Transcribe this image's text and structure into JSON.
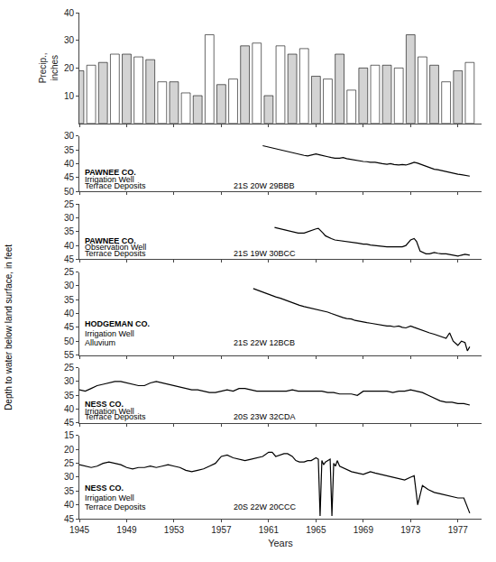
{
  "ylabel": "Depth to water below land surface, in feet",
  "chart_data": [
    {
      "type": "bar",
      "x": [
        1945,
        1946,
        1947,
        1948,
        1949,
        1950,
        1951,
        1952,
        1953,
        1954,
        1955,
        1956,
        1957,
        1958,
        1959,
        1960,
        1961,
        1962,
        1963,
        1964,
        1965,
        1966,
        1967,
        1968,
        1969,
        1970,
        1971,
        1972,
        1973,
        1974,
        1975,
        1976,
        1977,
        1978
      ],
      "values": [
        19,
        21,
        22,
        25,
        25,
        24,
        23,
        15,
        15,
        11,
        10,
        32,
        14,
        16,
        28,
        29,
        10,
        28,
        25,
        27,
        17,
        16,
        25,
        12,
        20,
        21,
        21,
        20,
        32,
        24,
        21,
        15,
        19,
        22
      ],
      "colors": [
        "lightgray",
        "white",
        "lightgray",
        "white",
        "lightgray",
        "white",
        "lightgray",
        "white",
        "lightgray",
        "white",
        "lightgray",
        "white",
        "lightgray",
        "white",
        "lightgray",
        "white",
        "lightgray",
        "white",
        "lightgray",
        "white",
        "lightgray",
        "white",
        "lightgray",
        "white",
        "lightgray",
        "white",
        "lightgray",
        "white",
        "lightgray",
        "white",
        "lightgray",
        "white",
        "lightgray",
        "white"
      ],
      "xlim": [
        1945,
        1979
      ],
      "xticks": [
        1945,
        1949,
        1953,
        1957,
        1961,
        1965,
        1969,
        1973,
        1977
      ],
      "ylim": [
        0,
        40
      ],
      "yticks": [
        10,
        20,
        30,
        40
      ],
      "ylabel": "Precip.,\ninches",
      "grid": false,
      "tick_labels": "y"
    },
    {
      "type": "line",
      "color": "black",
      "x": [
        1960.5,
        1961.0,
        1961.3,
        1961.6,
        1962.0,
        1962.3,
        1962.6,
        1963.0,
        1963.3,
        1963.6,
        1964.0,
        1964.3,
        1964.6,
        1965.0,
        1965.3,
        1965.6,
        1966.0,
        1966.3,
        1966.6,
        1967.0,
        1967.3,
        1967.6,
        1968.0,
        1968.3,
        1968.6,
        1969.0,
        1969.3,
        1969.6,
        1970.0,
        1970.3,
        1970.6,
        1971.0,
        1971.3,
        1971.6,
        1972.0,
        1972.3,
        1972.6,
        1973.0,
        1973.3,
        1973.6,
        1974.0,
        1974.3,
        1974.6,
        1975.0,
        1975.3,
        1975.6,
        1976.0,
        1976.3,
        1976.6,
        1977.0,
        1977.3,
        1977.6,
        1978.0
      ],
      "values": [
        33.5,
        34.0,
        34.5,
        34.8,
        35.0,
        35.3,
        35.7,
        36.0,
        36.3,
        36.6,
        37.0,
        37.2,
        37.0,
        36.5,
        36.8,
        37.2,
        37.5,
        37.8,
        38.0,
        38.0,
        37.8,
        38.2,
        38.5,
        38.8,
        39.0,
        39.2,
        39.3,
        39.5,
        39.5,
        39.8,
        40.0,
        40.2,
        40.0,
        40.3,
        40.5,
        40.3,
        40.5,
        40.0,
        39.5,
        39.8,
        40.5,
        41.0,
        41.5,
        42.0,
        42.2,
        42.5,
        43.0,
        43.3,
        43.5,
        43.8,
        44.0,
        44.2,
        44.5
      ],
      "xlim": [
        1945,
        1979
      ],
      "xticks": [
        1945,
        1949,
        1953,
        1957,
        1961,
        1965,
        1969,
        1973,
        1977
      ],
      "ylim": [
        50,
        30
      ],
      "yticks": [
        30,
        35,
        40,
        45,
        50
      ],
      "annotations": [
        "PAWNEE CO.",
        "Irrigation Well",
        "Terrace Deposits",
        "21S 20W 29BBB"
      ],
      "grid": false,
      "tick_labels": "y"
    },
    {
      "type": "line",
      "color": "black",
      "x": [
        1961.5,
        1962.0,
        1962.5,
        1963.0,
        1963.5,
        1964.0,
        1964.3,
        1964.6,
        1965.0,
        1965.2,
        1965.4,
        1965.6,
        1965.8,
        1966.0,
        1966.3,
        1966.6,
        1967.0,
        1967.3,
        1967.6,
        1968.0,
        1968.3,
        1968.6,
        1969.0,
        1969.3,
        1969.6,
        1970.0,
        1970.3,
        1970.6,
        1971.0,
        1971.3,
        1971.6,
        1972.0,
        1972.3,
        1972.6,
        1973.0,
        1973.3,
        1973.5,
        1973.8,
        1974.0,
        1974.3,
        1974.6,
        1975.0,
        1975.3,
        1975.6,
        1976.0,
        1976.3,
        1976.6,
        1977.0,
        1977.3,
        1977.6,
        1978.0
      ],
      "values": [
        33.5,
        34.0,
        34.5,
        35.0,
        35.5,
        35.5,
        35.0,
        34.5,
        34.0,
        33.8,
        34.5,
        35.5,
        36.5,
        37.0,
        37.5,
        38.0,
        38.2,
        38.5,
        38.5,
        38.8,
        39.0,
        39.2,
        39.5,
        39.5,
        39.8,
        40.0,
        40.2,
        40.5,
        40.5,
        40.5,
        40.5,
        40.5,
        40.5,
        40.0,
        38.0,
        37.5,
        38.5,
        42.0,
        42.5,
        43.0,
        43.0,
        42.5,
        42.8,
        43.0,
        43.0,
        43.2,
        43.5,
        43.8,
        43.5,
        43.2,
        43.5
      ],
      "xlim": [
        1945,
        1979
      ],
      "xticks": [
        1945,
        1949,
        1953,
        1957,
        1961,
        1965,
        1969,
        1973,
        1977
      ],
      "ylim": [
        45,
        25
      ],
      "yticks": [
        25,
        30,
        35,
        40,
        45
      ],
      "annotations": [
        "PAWNEE CO.",
        "Observation Well",
        "Terrace Deposits",
        "21S 19W 30BCC"
      ],
      "grid": false,
      "tick_labels": "y"
    },
    {
      "type": "line",
      "color": "black",
      "x": [
        1959.7,
        1960.0,
        1960.3,
        1960.6,
        1961.0,
        1961.3,
        1961.6,
        1962.0,
        1962.3,
        1962.6,
        1963.0,
        1963.3,
        1963.6,
        1964.0,
        1964.3,
        1964.6,
        1965.0,
        1965.3,
        1965.6,
        1966.0,
        1966.3,
        1966.6,
        1967.0,
        1967.3,
        1967.6,
        1968.0,
        1968.3,
        1968.6,
        1969.0,
        1969.3,
        1969.6,
        1970.0,
        1970.3,
        1970.6,
        1971.0,
        1971.3,
        1971.6,
        1972.0,
        1972.3,
        1972.6,
        1973.0,
        1973.3,
        1973.6,
        1974.0,
        1974.3,
        1974.6,
        1975.0,
        1975.3,
        1975.6,
        1976.0,
        1976.3,
        1976.6,
        1977.0,
        1977.3,
        1977.6,
        1977.8,
        1978.0
      ],
      "values": [
        31.0,
        31.5,
        32.0,
        32.5,
        33.0,
        33.5,
        34.0,
        34.5,
        35.0,
        35.5,
        36.0,
        36.5,
        37.0,
        37.5,
        37.8,
        38.0,
        38.5,
        38.8,
        39.0,
        39.5,
        40.0,
        40.5,
        41.0,
        41.5,
        41.8,
        42.0,
        42.5,
        42.8,
        43.0,
        43.3,
        43.5,
        43.8,
        44.0,
        44.2,
        44.5,
        44.5,
        44.8,
        44.5,
        45.0,
        45.2,
        44.5,
        45.0,
        45.5,
        46.0,
        46.5,
        47.0,
        47.5,
        48.0,
        48.5,
        49.0,
        47.0,
        50.0,
        51.5,
        50.0,
        50.5,
        53.5,
        52.0
      ],
      "xlim": [
        1945,
        1979
      ],
      "xticks": [
        1945,
        1949,
        1953,
        1957,
        1961,
        1965,
        1969,
        1973,
        1977
      ],
      "ylim": [
        55,
        25
      ],
      "yticks": [
        25,
        30,
        35,
        40,
        45,
        50,
        55
      ],
      "annotations": [
        "HODGEMAN CO.",
        "Irrigation Well",
        "Alluvium",
        "21S 22W 12BCB"
      ],
      "grid": false,
      "tick_labels": "y"
    },
    {
      "type": "line",
      "color": "black",
      "x": [
        1945.0,
        1945.5,
        1946.0,
        1946.5,
        1947.0,
        1947.5,
        1948.0,
        1948.5,
        1949.0,
        1949.5,
        1950.0,
        1950.5,
        1951.0,
        1951.5,
        1952.0,
        1952.5,
        1953.0,
        1953.5,
        1954.0,
        1954.5,
        1955.0,
        1955.5,
        1956.0,
        1956.5,
        1957.0,
        1957.5,
        1958.0,
        1958.5,
        1959.0,
        1959.5,
        1960.0,
        1960.5,
        1961.0,
        1961.5,
        1962.0,
        1962.5,
        1963.0,
        1963.5,
        1964.0,
        1964.5,
        1965.0,
        1965.5,
        1966.0,
        1966.5,
        1967.0,
        1967.5,
        1968.0,
        1968.5,
        1969.0,
        1969.5,
        1970.0,
        1970.5,
        1971.0,
        1971.5,
        1972.0,
        1972.5,
        1973.0,
        1973.5,
        1974.0,
        1974.5,
        1975.0,
        1975.5,
        1976.0,
        1976.5,
        1977.0,
        1977.5,
        1978.0
      ],
      "values": [
        33.0,
        33.5,
        32.5,
        31.5,
        31.0,
        30.5,
        30.0,
        30.0,
        30.5,
        31.0,
        31.5,
        31.5,
        30.5,
        30.0,
        30.5,
        31.0,
        31.5,
        32.0,
        32.5,
        33.0,
        33.0,
        33.5,
        34.0,
        34.0,
        33.5,
        33.0,
        33.5,
        32.5,
        32.5,
        33.0,
        33.5,
        33.5,
        33.5,
        33.5,
        33.5,
        33.5,
        33.0,
        33.5,
        33.5,
        33.5,
        33.5,
        33.5,
        34.0,
        34.0,
        34.5,
        34.5,
        34.5,
        35.0,
        33.5,
        33.5,
        33.5,
        33.5,
        33.5,
        34.0,
        33.5,
        33.5,
        33.0,
        33.5,
        34.0,
        35.0,
        36.0,
        37.0,
        37.5,
        37.5,
        38.0,
        38.0,
        38.5
      ],
      "xlim": [
        1945,
        1979
      ],
      "xticks": [
        1945,
        1949,
        1953,
        1957,
        1961,
        1965,
        1969,
        1973,
        1977
      ],
      "ylim": [
        45,
        25
      ],
      "yticks": [
        25,
        30,
        35,
        40,
        45
      ],
      "annotations": [
        "NESS CO.",
        "Irrigation Well",
        "Terrace Deposits",
        "20S 23W 32CDA"
      ],
      "grid": false,
      "tick_labels": "y"
    },
    {
      "type": "line",
      "color": "black",
      "x": [
        1945.0,
        1945.5,
        1946.0,
        1946.5,
        1947.0,
        1947.5,
        1948.0,
        1948.5,
        1949.0,
        1949.5,
        1950.0,
        1950.5,
        1951.0,
        1951.5,
        1952.0,
        1952.5,
        1953.0,
        1953.5,
        1954.0,
        1954.5,
        1955.0,
        1955.5,
        1956.0,
        1956.5,
        1957.0,
        1957.5,
        1958.0,
        1958.5,
        1959.0,
        1959.5,
        1960.0,
        1960.5,
        1961.0,
        1961.3,
        1961.6,
        1962.0,
        1962.3,
        1962.6,
        1963.0,
        1963.3,
        1963.6,
        1964.0,
        1964.3,
        1964.6,
        1965.0,
        1965.2,
        1965.35,
        1965.5,
        1965.65,
        1965.8,
        1966.0,
        1966.2,
        1966.35,
        1966.5,
        1966.65,
        1966.8,
        1967.0,
        1967.5,
        1968.0,
        1968.5,
        1969.0,
        1969.3,
        1969.6,
        1970.0,
        1970.5,
        1971.0,
        1971.5,
        1972.0,
        1972.5,
        1973.0,
        1973.3,
        1973.6,
        1974.0,
        1974.5,
        1975.0,
        1975.5,
        1976.0,
        1976.5,
        1977.0,
        1977.5,
        1978.0
      ],
      "values": [
        25.5,
        26.0,
        26.5,
        26.0,
        25.0,
        24.5,
        25.0,
        25.5,
        26.5,
        27.0,
        26.5,
        26.5,
        26.0,
        26.5,
        26.0,
        25.5,
        26.0,
        26.5,
        27.5,
        28.0,
        27.5,
        27.0,
        26.0,
        25.0,
        22.5,
        22.0,
        23.0,
        23.5,
        24.0,
        23.5,
        23.0,
        22.5,
        21.0,
        21.0,
        22.5,
        22.0,
        21.5,
        21.5,
        22.5,
        24.0,
        24.5,
        24.5,
        24.0,
        24.0,
        23.0,
        23.5,
        44.0,
        24.0,
        25.5,
        24.5,
        24.0,
        23.5,
        44.0,
        25.0,
        26.0,
        24.0,
        26.0,
        27.0,
        28.0,
        28.5,
        29.0,
        28.5,
        28.0,
        28.5,
        29.0,
        29.5,
        30.0,
        30.5,
        31.0,
        30.0,
        29.5,
        40.0,
        33.0,
        34.5,
        35.5,
        36.0,
        36.5,
        37.0,
        37.5,
        37.5,
        43.0
      ],
      "xlim": [
        1945,
        1979
      ],
      "xticks": [
        1945,
        1949,
        1953,
        1957,
        1961,
        1965,
        1969,
        1973,
        1977
      ],
      "ylim": [
        45,
        15
      ],
      "yticks": [
        15,
        20,
        25,
        30,
        35,
        40,
        45
      ],
      "annotations": [
        "NESS CO.",
        "Irrigation Well",
        "Terrace Deposits",
        "20S 22W 20CCC"
      ],
      "xlabel": "Years",
      "grid": false
    }
  ]
}
